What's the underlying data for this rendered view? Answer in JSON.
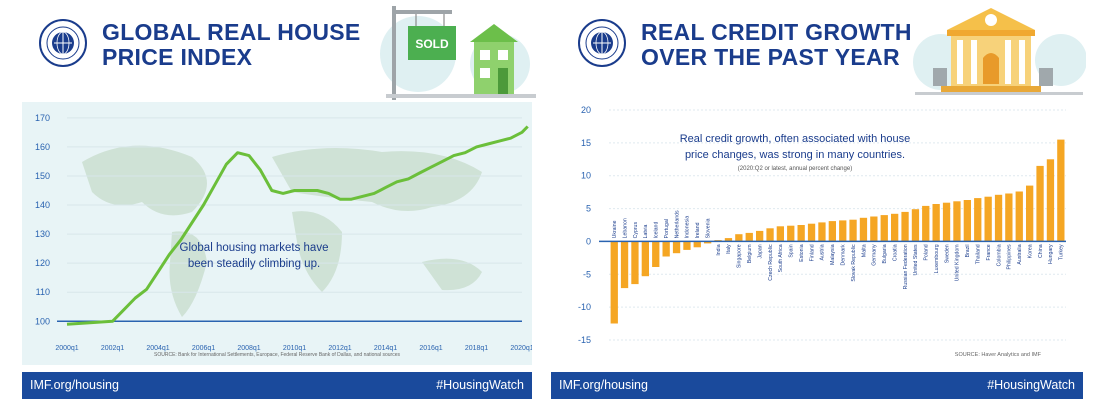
{
  "left": {
    "title_line1": "GLOBAL REAL HOUSE",
    "title_line2": "PRICE INDEX",
    "sign_text": "SOLD",
    "annotation_line1": "Global housing markets have",
    "annotation_line2": "been steadily climbing up.",
    "source": "SOURCE: Bank for International Settlements, Europace, Federal Reserve Bank of Dallas, and national sources",
    "footer_left": "IMF.org/housing",
    "footer_right": "#HousingWatch"
  },
  "right": {
    "title_line1": "REAL CREDIT GROWTH",
    "title_line2": "OVER THE PAST YEAR",
    "annotation_line1": "Real credit growth, often associated with house",
    "annotation_line2": "price changes, was strong in many countries.",
    "annotation_sub": "(2020:Q2 or latest, annual percent change)",
    "source": "SOURCE: Haver Analytics and IMF",
    "footer_left": "IMF.org/housing",
    "footer_right": "#HousingWatch"
  },
  "colors": {
    "navy": "#1a3c8c",
    "green": "#7cc142",
    "orange": "#f5a623",
    "axis_blue": "#2a63b0",
    "map": "#c9dcd0"
  },
  "chart_data": [
    {
      "type": "line",
      "title": "GLOBAL REAL HOUSE PRICE INDEX",
      "x_ticks": [
        "2000q1",
        "2002q1",
        "2004q1",
        "2006q1",
        "2008q1",
        "2010q1",
        "2012q1",
        "2014q1",
        "2016q1",
        "2018q1",
        "2020q1"
      ],
      "y_ticks": [
        100,
        110,
        120,
        130,
        140,
        150,
        160,
        170
      ],
      "ylim": [
        97,
        172
      ],
      "baseline": 100,
      "x": [
        2000.0,
        2001.0,
        2002.0,
        2002.5,
        2003.0,
        2003.5,
        2004.0,
        2004.5,
        2005.0,
        2005.5,
        2006.0,
        2006.5,
        2007.0,
        2007.5,
        2008.0,
        2008.5,
        2009.0,
        2009.5,
        2010.0,
        2010.5,
        2011.0,
        2011.5,
        2012.0,
        2012.5,
        2013.0,
        2013.5,
        2014.0,
        2014.5,
        2015.0,
        2015.5,
        2016.0,
        2016.5,
        2017.0,
        2017.5,
        2018.0,
        2018.5,
        2019.0,
        2019.5,
        2020.0,
        2020.25
      ],
      "y": [
        99,
        99.5,
        100,
        104,
        108,
        111,
        117,
        123,
        128,
        134,
        140,
        147,
        154,
        158,
        157,
        152,
        145,
        144,
        145,
        145,
        145,
        144,
        142,
        142,
        143,
        144,
        146,
        148,
        149,
        151,
        153,
        155,
        157,
        158,
        160,
        161,
        162,
        163,
        165,
        167
      ]
    },
    {
      "type": "bar",
      "title": "REAL CREDIT GROWTH OVER THE PAST YEAR",
      "y_ticks": [
        -15,
        -10,
        -5,
        0,
        5,
        10,
        15,
        20
      ],
      "ylim": [
        -15,
        20
      ],
      "categories": [
        "Ukraine",
        "Lebanon",
        "Cyprus",
        "Latvia",
        "Iceland",
        "Portugal",
        "Netherlands",
        "Indonesia",
        "Ireland",
        "Slovenia",
        "India",
        "Italy",
        "Singapore",
        "Belgium",
        "Japan",
        "Czech Republic",
        "South Africa",
        "Spain",
        "Estonia",
        "Finland",
        "Austria",
        "Malaysia",
        "Denmark",
        "Slovak Republic",
        "Malta",
        "Germany",
        "Bulgaria",
        "Croatia",
        "Russian Federation",
        "United States",
        "Poland",
        "Luxembourg",
        "Sweden",
        "United Kingdom",
        "Brazil",
        "Thailand",
        "France",
        "Colombia",
        "Philippines",
        "Australia",
        "Korea",
        "China",
        "Hungary",
        "Turkey"
      ],
      "values": [
        -12.5,
        -7.1,
        -6.5,
        -5.3,
        -3.9,
        -2.3,
        -1.8,
        -1.3,
        -0.9,
        -0.3,
        0.2,
        0.5,
        1.1,
        1.3,
        1.6,
        2.0,
        2.3,
        2.4,
        2.5,
        2.7,
        2.9,
        3.1,
        3.2,
        3.3,
        3.6,
        3.8,
        4.0,
        4.2,
        4.5,
        4.9,
        5.4,
        5.7,
        5.9,
        6.1,
        6.3,
        6.6,
        6.8,
        7.1,
        7.3,
        7.6,
        8.5,
        11.5,
        12.5,
        15.5
      ]
    }
  ]
}
